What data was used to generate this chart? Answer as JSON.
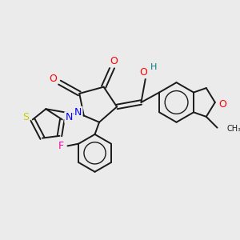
{
  "background_color": "#ebebeb",
  "bond_color": "#1a1a1a",
  "lw": 1.4,
  "atom_colors": {
    "O": "#ff0000",
    "N": "#0000ff",
    "S": "#cccc00",
    "F": "#ff00aa",
    "H": "#008080",
    "C": "#1a1a1a"
  },
  "figsize": [
    3.0,
    3.0
  ],
  "dpi": 100
}
